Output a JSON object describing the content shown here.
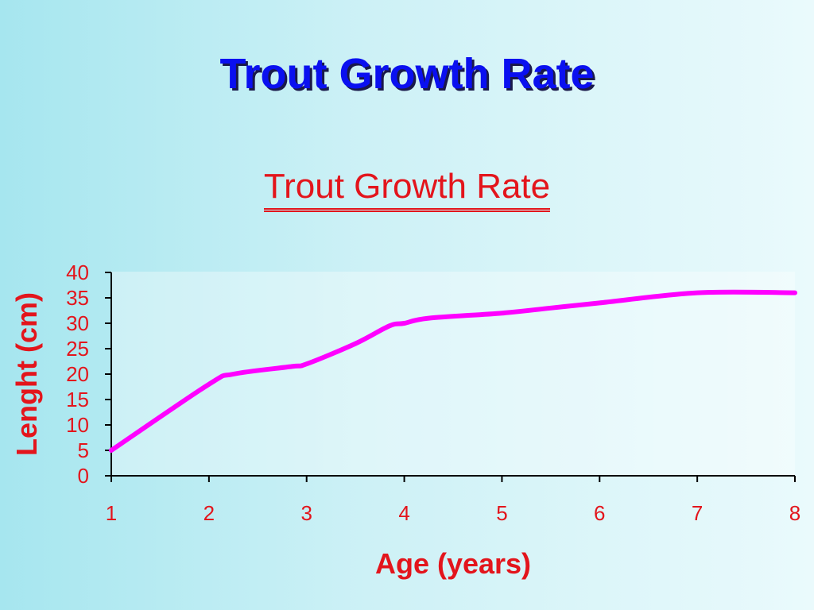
{
  "slide": {
    "title": "Trout Growth Rate"
  },
  "chart_data": {
    "type": "line",
    "title": "Trout Growth Rate",
    "xlabel": "Age (years)",
    "ylabel": "Lenght (cm)",
    "xlim": [
      1,
      8
    ],
    "ylim": [
      0,
      40
    ],
    "xticks": [
      1,
      2,
      3,
      4,
      5,
      6,
      7,
      8
    ],
    "yticks": [
      0,
      5,
      10,
      15,
      20,
      25,
      30,
      35,
      40
    ],
    "grid": false,
    "legend": "none",
    "series": [
      {
        "color": "#ff00ff",
        "x": [
          1,
          2,
          2.25,
          2.85,
          3,
          3.5,
          3.85,
          4,
          4.25,
          5,
          5.5,
          6,
          7,
          8
        ],
        "y": [
          5,
          18,
          20,
          21.5,
          22,
          26,
          29.5,
          30,
          31,
          32,
          33,
          34,
          36,
          36
        ]
      }
    ]
  }
}
